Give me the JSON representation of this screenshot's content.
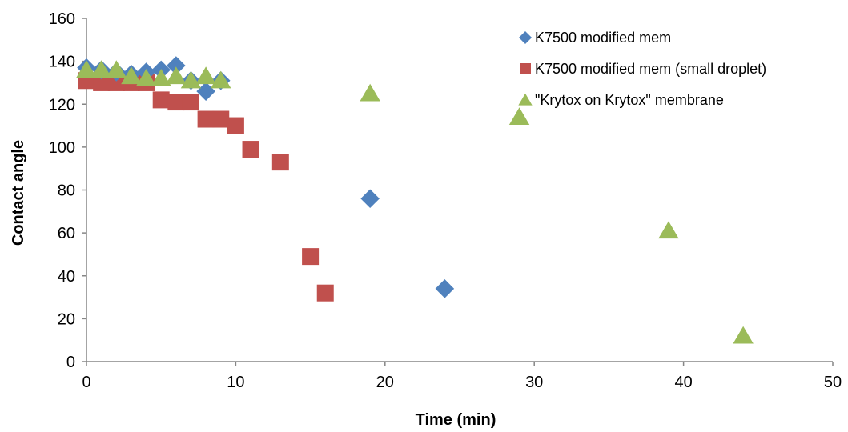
{
  "chart_data": {
    "type": "scatter",
    "title": "",
    "xlabel": "Time (min)",
    "ylabel": "Contact angle",
    "xlim": [
      0,
      50
    ],
    "ylim": [
      0,
      160
    ],
    "xticks": [
      0,
      10,
      20,
      30,
      40,
      50
    ],
    "yticks": [
      0,
      20,
      40,
      60,
      80,
      100,
      120,
      140,
      160
    ],
    "grid": false,
    "legend_position": "top-right",
    "series": [
      {
        "name": "K7500 modified mem",
        "marker": "diamond",
        "color": "#4F81BD",
        "points": [
          [
            0,
            137
          ],
          [
            1,
            136
          ],
          [
            2,
            135
          ],
          [
            3,
            134
          ],
          [
            4,
            135
          ],
          [
            5,
            136
          ],
          [
            6,
            138
          ],
          [
            7,
            131
          ],
          [
            8,
            126
          ],
          [
            9,
            131
          ],
          [
            19,
            76
          ],
          [
            24,
            34
          ]
        ]
      },
      {
        "name": "K7500 modified mem (small droplet)",
        "marker": "square",
        "color": "#C0504D",
        "points": [
          [
            0,
            131
          ],
          [
            1,
            130
          ],
          [
            2,
            130
          ],
          [
            3,
            130
          ],
          [
            4,
            130
          ],
          [
            5,
            122
          ],
          [
            6,
            121
          ],
          [
            7,
            121
          ],
          [
            8,
            113
          ],
          [
            9,
            113
          ],
          [
            10,
            110
          ],
          [
            11,
            99
          ],
          [
            13,
            93
          ],
          [
            15,
            49
          ],
          [
            16,
            32
          ]
        ]
      },
      {
        "name": "\"Krytox on Krytox\" membrane",
        "marker": "triangle",
        "color": "#9BBB59",
        "points": [
          [
            0,
            136
          ],
          [
            1,
            136
          ],
          [
            2,
            136
          ],
          [
            3,
            133
          ],
          [
            4,
            132
          ],
          [
            5,
            132
          ],
          [
            6,
            133
          ],
          [
            7,
            131
          ],
          [
            8,
            133
          ],
          [
            9,
            131
          ],
          [
            19,
            125
          ],
          [
            29,
            114
          ],
          [
            39,
            61
          ],
          [
            44,
            12
          ]
        ]
      }
    ]
  }
}
